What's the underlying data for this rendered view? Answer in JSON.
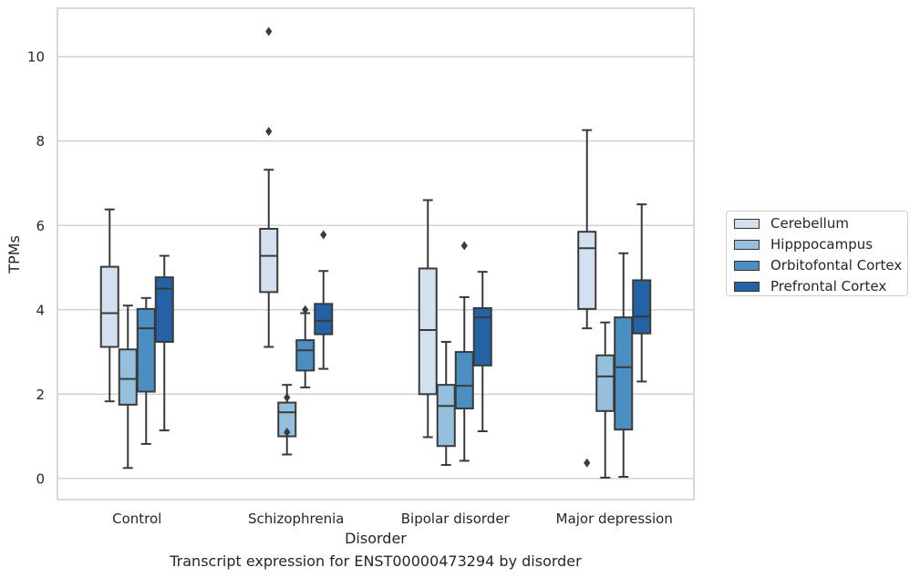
{
  "caption": "Transcript expression for ENST00000473294 by disorder",
  "colors": {
    "Cerebellum": "#d2e0f0",
    "Hipppocampus": "#94c0dd",
    "Orbitofontal Cortex": "#4b8fc2",
    "Prefrontal Cortex": "#2462a6",
    "grid": "#cccccc",
    "frame": "#cccccc",
    "line": "#3a3a3a"
  },
  "chart_data": {
    "type": "box",
    "xlabel": "Disorder",
    "ylabel": "TPMs",
    "ylim": [
      -0.5,
      11.15
    ],
    "yticks": [
      0,
      2,
      4,
      6,
      8,
      10
    ],
    "grid": "horizontal",
    "legend": "right",
    "categories": [
      "Control",
      "Schizophrenia",
      "Bipolar disorder",
      "Major depression"
    ],
    "series": [
      {
        "name": "Cerebellum",
        "boxes": [
          {
            "whislo": 1.83,
            "q1": 3.12,
            "med": 3.92,
            "q3": 5.02,
            "whishi": 6.38,
            "fliers": []
          },
          {
            "whislo": 3.12,
            "q1": 4.42,
            "med": 5.28,
            "q3": 5.92,
            "whishi": 7.32,
            "fliers": [
              8.23,
              10.6
            ]
          },
          {
            "whislo": 0.98,
            "q1": 2.0,
            "med": 3.52,
            "q3": 4.98,
            "whishi": 6.6,
            "fliers": []
          },
          {
            "whislo": 3.56,
            "q1": 4.02,
            "med": 5.46,
            "q3": 5.85,
            "whishi": 8.26,
            "fliers": [
              0.37
            ]
          }
        ]
      },
      {
        "name": "Hipppocampus",
        "boxes": [
          {
            "whislo": 0.25,
            "q1": 1.75,
            "med": 2.36,
            "q3": 3.06,
            "whishi": 4.1,
            "fliers": []
          },
          {
            "whislo": 0.57,
            "q1": 1.0,
            "med": 1.57,
            "q3": 1.8,
            "whishi": 2.22,
            "fliers": [
              1.92,
              1.1
            ]
          },
          {
            "whislo": 0.32,
            "q1": 0.77,
            "med": 1.72,
            "q3": 2.22,
            "whishi": 3.24,
            "fliers": []
          },
          {
            "whislo": 0.02,
            "q1": 1.6,
            "med": 2.42,
            "q3": 2.92,
            "whishi": 3.7,
            "fliers": []
          }
        ]
      },
      {
        "name": "Orbitofontal Cortex",
        "boxes": [
          {
            "whislo": 0.82,
            "q1": 2.06,
            "med": 3.56,
            "q3": 4.02,
            "whishi": 4.28,
            "fliers": []
          },
          {
            "whislo": 2.16,
            "q1": 2.56,
            "med": 3.04,
            "q3": 3.28,
            "whishi": 3.92,
            "fliers": [
              4.0
            ]
          },
          {
            "whislo": 0.42,
            "q1": 1.66,
            "med": 2.2,
            "q3": 3.0,
            "whishi": 4.3,
            "fliers": [
              5.52
            ]
          },
          {
            "whislo": 0.04,
            "q1": 1.16,
            "med": 2.64,
            "q3": 3.82,
            "whishi": 5.34,
            "fliers": []
          }
        ]
      },
      {
        "name": "Prefrontal Cortex",
        "boxes": [
          {
            "whislo": 1.14,
            "q1": 3.24,
            "med": 4.5,
            "q3": 4.77,
            "whishi": 5.28,
            "fliers": []
          },
          {
            "whislo": 2.6,
            "q1": 3.42,
            "med": 3.74,
            "q3": 4.14,
            "whishi": 4.92,
            "fliers": [
              5.78
            ]
          },
          {
            "whislo": 1.12,
            "q1": 2.68,
            "med": 3.82,
            "q3": 4.04,
            "whishi": 4.9,
            "fliers": []
          },
          {
            "whislo": 2.3,
            "q1": 3.44,
            "med": 3.84,
            "q3": 4.7,
            "whishi": 6.5,
            "fliers": []
          }
        ]
      }
    ]
  }
}
